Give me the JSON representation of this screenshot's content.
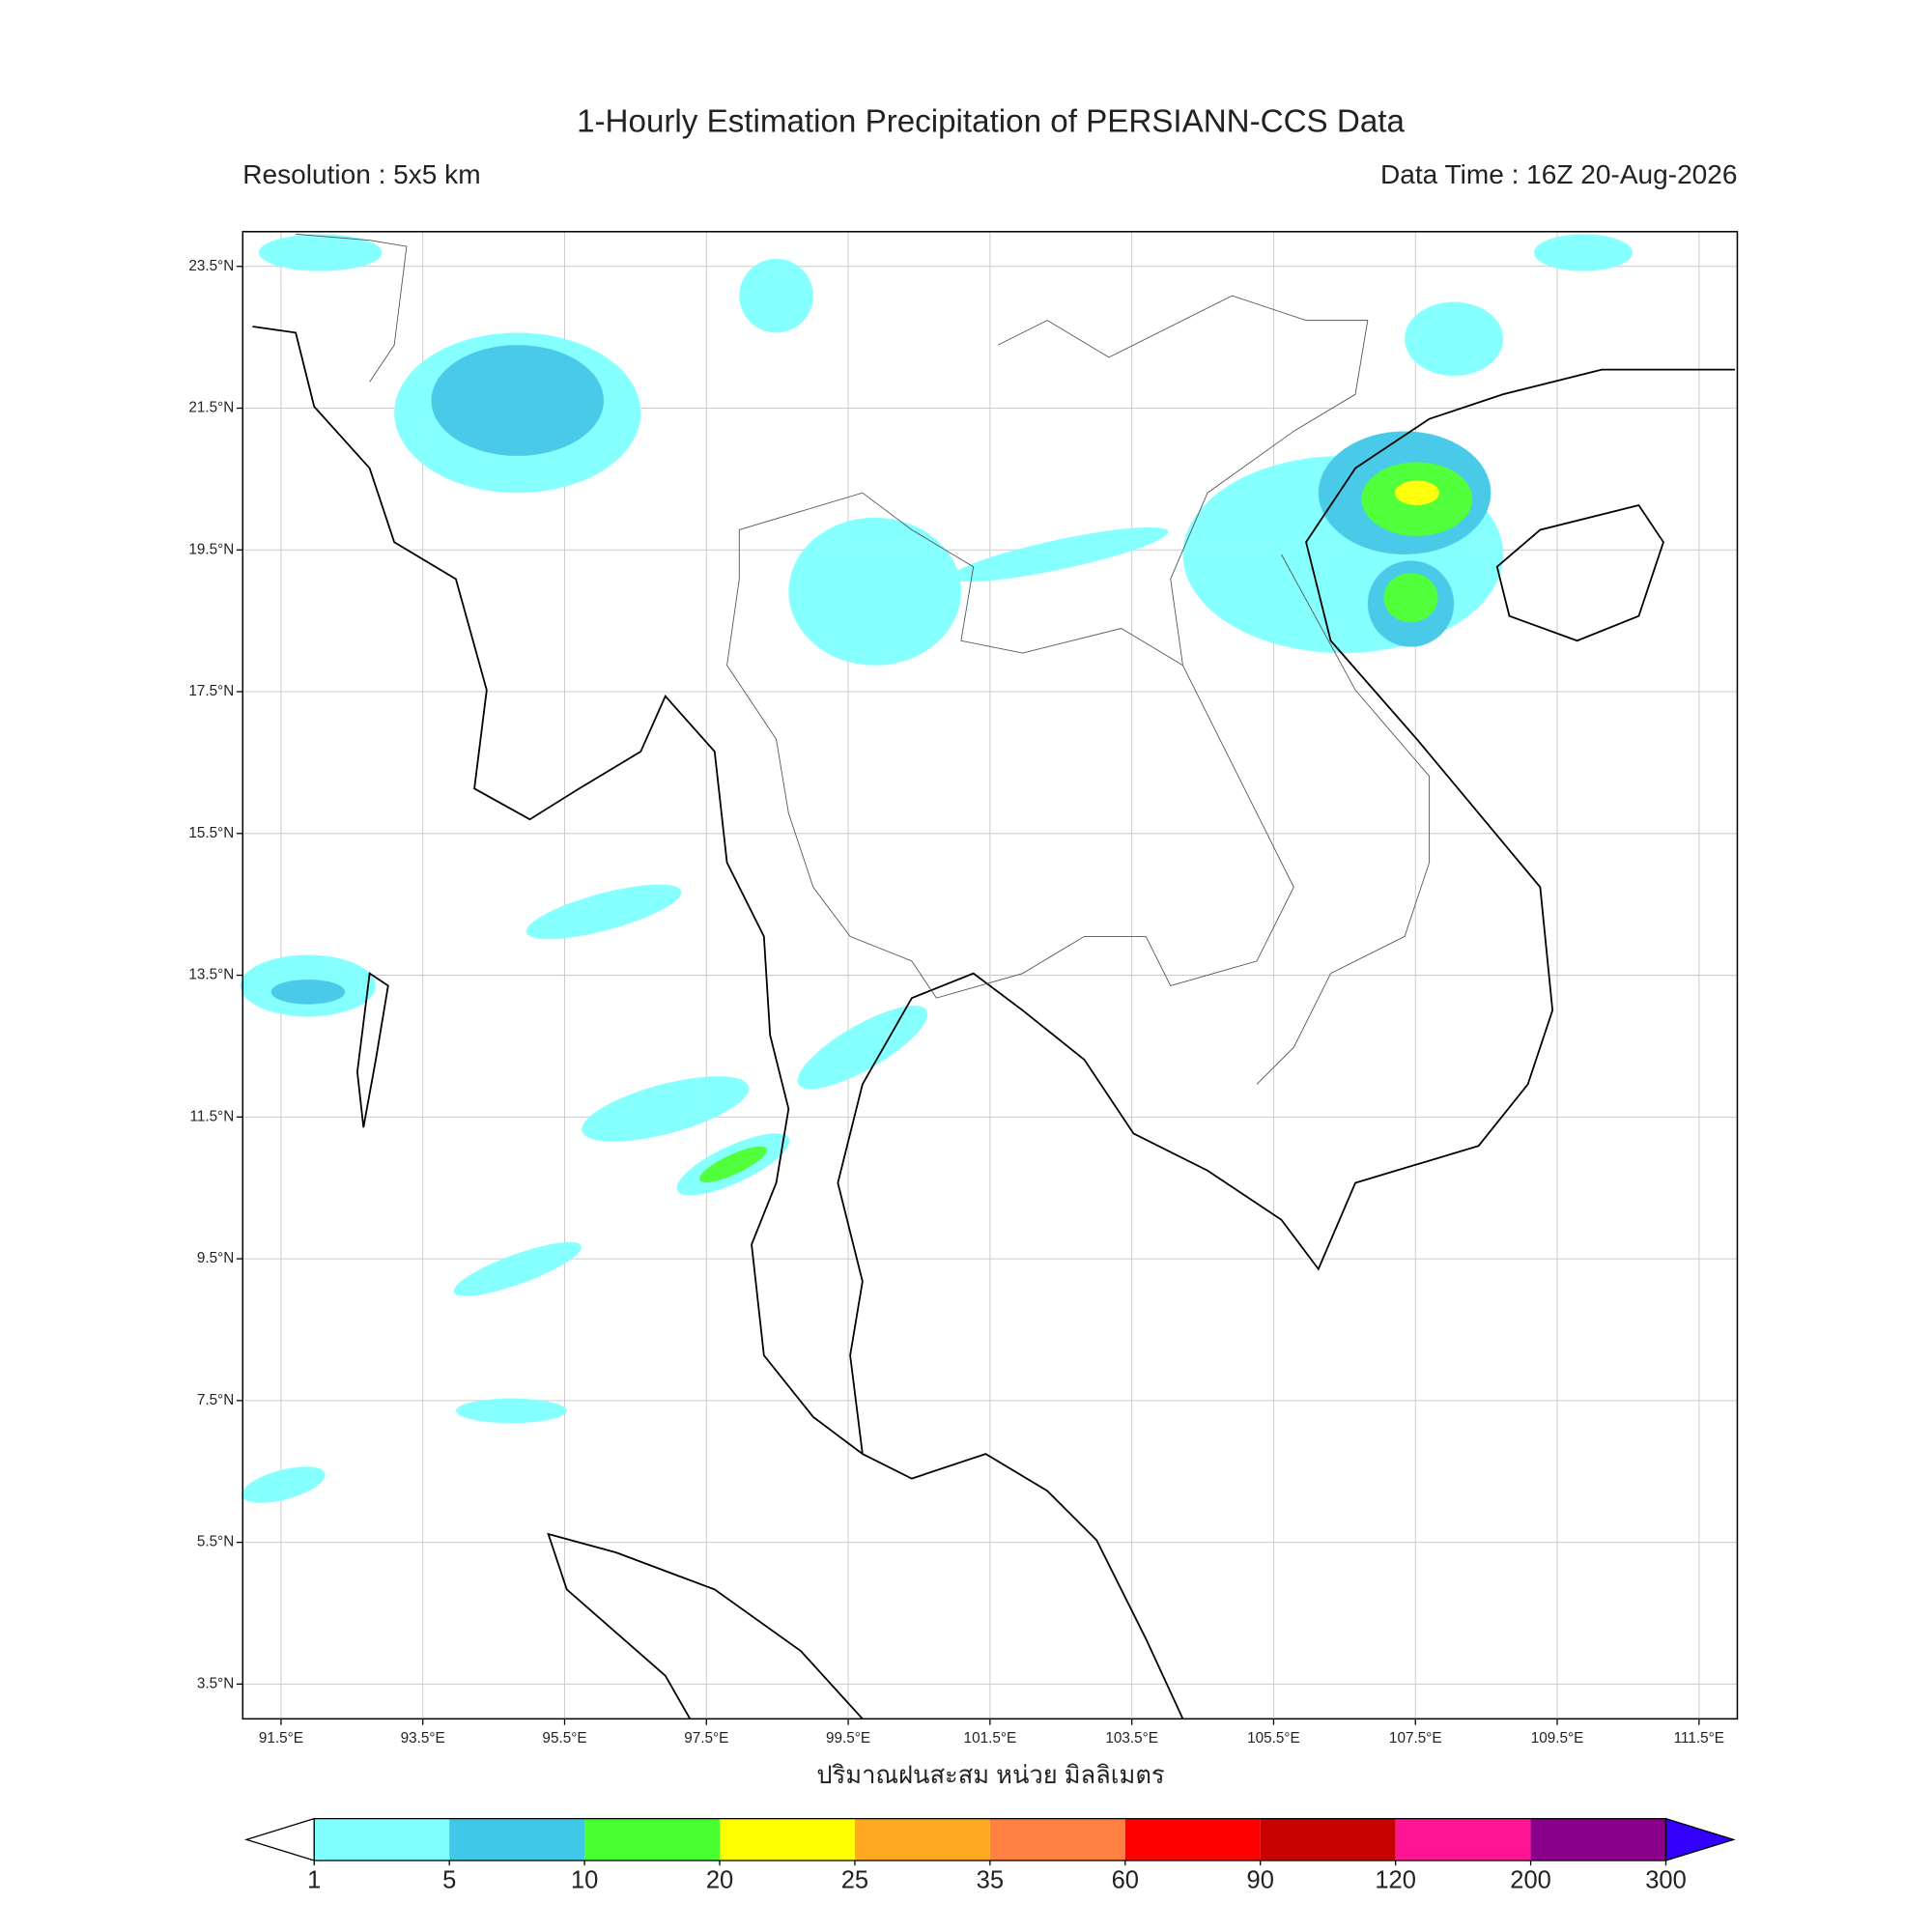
{
  "header": {
    "title": "1-Hourly Estimation Precipitation of PERSIANN-CCS Data",
    "resolution": "Resolution : 5x5 km",
    "data_time": "Data Time : 16Z 20-Aug-2026"
  },
  "map": {
    "xlim": [
      90.96,
      112.04
    ],
    "ylim": [
      3.01,
      23.99
    ],
    "xticks": [
      {
        "value": 91.5,
        "label": "91.5°E"
      },
      {
        "value": 93.5,
        "label": "93.5°E"
      },
      {
        "value": 95.5,
        "label": "95.5°E"
      },
      {
        "value": 97.5,
        "label": "97.5°E"
      },
      {
        "value": 99.5,
        "label": "99.5°E"
      },
      {
        "value": 101.5,
        "label": "101.5°E"
      },
      {
        "value": 103.5,
        "label": "103.5°E"
      },
      {
        "value": 105.5,
        "label": "105.5°E"
      },
      {
        "value": 107.5,
        "label": "107.5°E"
      },
      {
        "value": 109.5,
        "label": "109.5°E"
      },
      {
        "value": 111.5,
        "label": "111.5°E"
      }
    ],
    "yticks": [
      {
        "value": 3.5,
        "label": "3.5°N"
      },
      {
        "value": 5.5,
        "label": "5.5°N"
      },
      {
        "value": 7.5,
        "label": "7.5°N"
      },
      {
        "value": 9.5,
        "label": "9.5°N"
      },
      {
        "value": 11.5,
        "label": "11.5°N"
      },
      {
        "value": 13.5,
        "label": "13.5°N"
      },
      {
        "value": 15.5,
        "label": "15.5°N"
      },
      {
        "value": 17.5,
        "label": "17.5°N"
      },
      {
        "value": 19.5,
        "label": "19.5°N"
      },
      {
        "value": 21.5,
        "label": "21.5°N"
      },
      {
        "value": 23.5,
        "label": "23.5°N"
      }
    ],
    "grid": true,
    "xlabel": "ปริมาณฝนสะสม หน่วย มิลลิเมตร"
  },
  "colorbar": {
    "levels": [
      1,
      5,
      10,
      20,
      25,
      35,
      60,
      90,
      120,
      200,
      300
    ],
    "colors": [
      "#80ffff",
      "#40c8e8",
      "#48ff30",
      "#ffff00",
      "#ffa820",
      "#ff8040",
      "#ff0000",
      "#c80000",
      "#ff1493",
      "#8b008b"
    ],
    "under_color": "#ffffff",
    "over_color": "#3300ff"
  }
}
